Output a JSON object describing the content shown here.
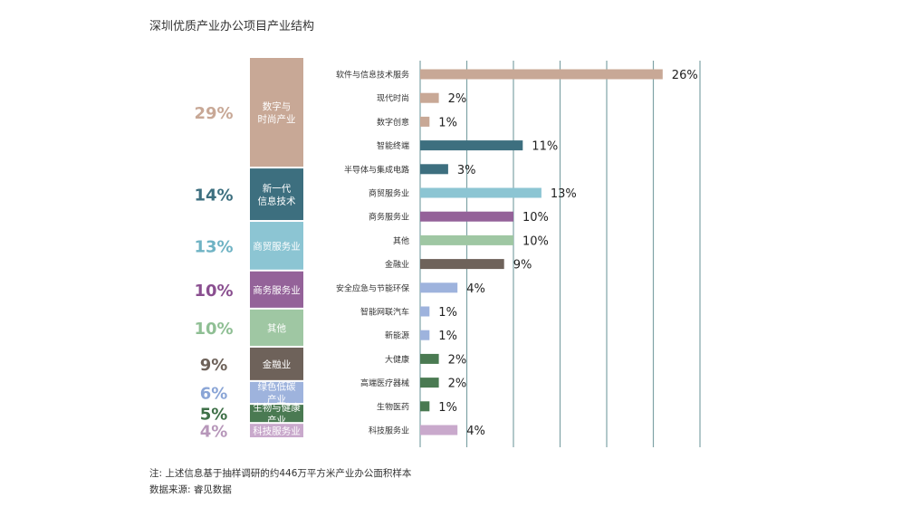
{
  "title": "深圳优质产业办公项目产业结构",
  "note": "注: 上述信息基于抽样调研的约446万平方米产业办公面积样本",
  "source": "数据来源: 睿见数据",
  "chart_data": {
    "type": "bar",
    "orientation": "horizontal",
    "xlim": [
      0,
      30
    ],
    "grid": true,
    "groups": [
      {
        "label": "数字与\n时尚产业",
        "share": "29%",
        "percent": 29,
        "color": "#c8a896",
        "labelColor": "#c8a896",
        "items": [
          {
            "name": "软件与信息技术服务",
            "value": 26,
            "label": "26%"
          },
          {
            "name": "现代时尚",
            "value": 2,
            "label": "2%"
          },
          {
            "name": "数字创意",
            "value": 1,
            "label": "1%"
          }
        ]
      },
      {
        "label": "新一代\n信息技术",
        "share": "14%",
        "percent": 14,
        "color": "#3d6f7f",
        "labelColor": "#3d6f7f",
        "items": [
          {
            "name": "智能终端",
            "value": 11,
            "label": "11%"
          },
          {
            "name": "半导体与集成电路",
            "value": 3,
            "label": "3%"
          }
        ]
      },
      {
        "label": "商贸服务业",
        "share": "13%",
        "percent": 13,
        "color": "#8cc5d3",
        "labelColor": "#6fb3c4",
        "items": [
          {
            "name": "商贸服务业",
            "value": 13,
            "label": "13%"
          }
        ]
      },
      {
        "label": "商务服务业",
        "share": "10%",
        "percent": 10,
        "color": "#946299",
        "labelColor": "#8a4f90",
        "items": [
          {
            "name": "商务服务业",
            "value": 10,
            "label": "10%"
          }
        ]
      },
      {
        "label": "其他",
        "share": "10%",
        "percent": 10,
        "color": "#9fc7a3",
        "labelColor": "#8fbf94",
        "items": [
          {
            "name": "其他",
            "value": 10,
            "label": "10%"
          }
        ]
      },
      {
        "label": "金融业",
        "share": "9%",
        "percent": 9,
        "color": "#6e625a",
        "labelColor": "#6e625a",
        "items": [
          {
            "name": "金融业",
            "value": 9,
            "label": "9%"
          }
        ]
      },
      {
        "label": "绿色低碳\n产业",
        "share": "6%",
        "percent": 6,
        "color": "#9eb3dd",
        "labelColor": "#8aa5d6",
        "items": [
          {
            "name": "安全应急与节能环保",
            "value": 4,
            "label": "4%"
          },
          {
            "name": "智能网联汽车",
            "value": 1,
            "label": "1%"
          },
          {
            "name": "新能源",
            "value": 1,
            "label": "1%"
          }
        ]
      },
      {
        "label": "生物与健康\n产业",
        "share": "5%",
        "percent": 5,
        "color": "#4a7a52",
        "labelColor": "#3f7048",
        "items": [
          {
            "name": "大健康",
            "value": 2,
            "label": "2%"
          },
          {
            "name": "高端医疗器械",
            "value": 2,
            "label": "2%"
          },
          {
            "name": "生物医药",
            "value": 1,
            "label": "1%"
          }
        ]
      },
      {
        "label": "科技服务业",
        "share": "4%",
        "percent": 4,
        "color": "#c9a9cc",
        "labelColor": "#b797ba",
        "items": [
          {
            "name": "科技服务业",
            "value": 4,
            "label": "4%"
          }
        ]
      }
    ]
  }
}
